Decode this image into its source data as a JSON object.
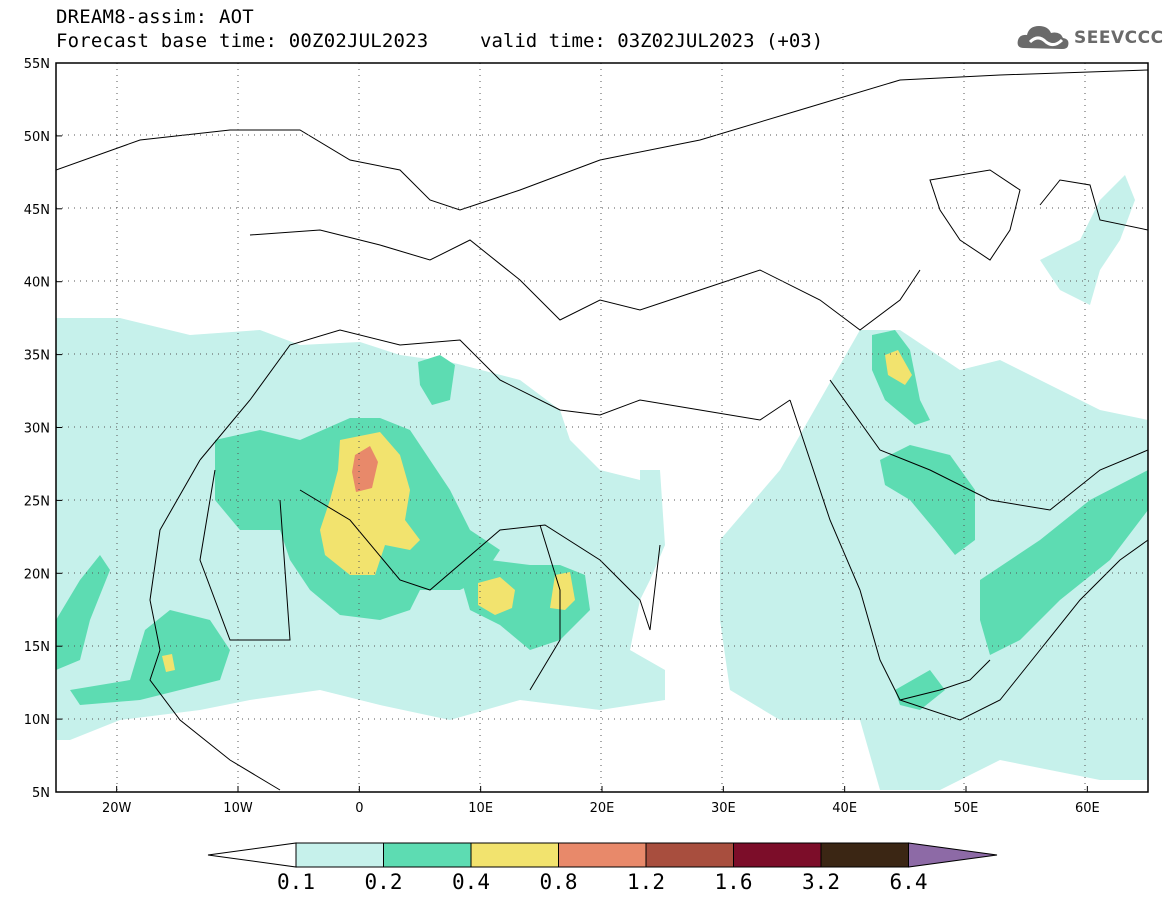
{
  "header": {
    "title_line1": "DREAM8-assim: AOT",
    "title_line2": "Forecast base time: 00Z02JUL2023",
    "valid_time": "valid time: 03Z02JUL2023 (+03)",
    "logo_text": "SEEVCCC"
  },
  "map": {
    "lon_range": [
      -25,
      65
    ],
    "lat_range": [
      5,
      55
    ],
    "lat_labels": [
      "5N",
      "10N",
      "15N",
      "20N",
      "25N",
      "30N",
      "35N",
      "40N",
      "45N",
      "50N",
      "55N"
    ],
    "lon_labels": [
      "20W",
      "10W",
      "0",
      "10E",
      "20E",
      "30E",
      "40E",
      "50E",
      "60E"
    ],
    "gridlines": "dotted"
  },
  "colorbar": {
    "labels": [
      "0.1",
      "0.2",
      "0.4",
      "0.8",
      "1.2",
      "1.6",
      "3.2",
      "6.4"
    ],
    "colors": [
      "#c6f1eb",
      "#5ddcb2",
      "#f2e36e",
      "#e8896a",
      "#a84e3e",
      "#7c0d29",
      "#3b2614",
      "#8d6aa6"
    ]
  }
}
